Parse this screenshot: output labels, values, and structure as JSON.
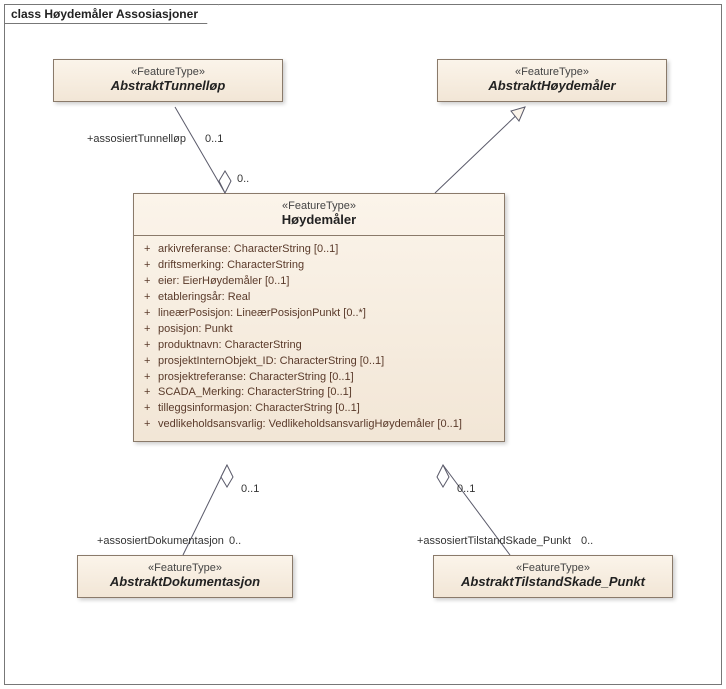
{
  "frame_title": "class Høydemåler Assosiasjoner",
  "boxes": {
    "tunnel": {
      "stereo": "«FeatureType»",
      "name": "AbstraktTunnelløp"
    },
    "abshm": {
      "stereo": "«FeatureType»",
      "name": "AbstraktHøydemåler"
    },
    "hm": {
      "stereo": "«FeatureType»",
      "name": "Høydemåler"
    },
    "dok": {
      "stereo": "«FeatureType»",
      "name": "AbstraktDokumentasjon"
    },
    "skade": {
      "stereo": "«FeatureType»",
      "name": "AbstraktTilstandSkade_Punkt"
    }
  },
  "attrs": [
    "arkivreferanse: CharacterString [0..1]",
    "driftsmerking: CharacterString",
    "eier: EierHøydemåler [0..1]",
    "etableringsår: Real",
    "lineærPosisjon: LineærPosisjonPunkt [0..*]",
    "posisjon: Punkt",
    "produktnavn: CharacterString",
    "prosjektInternObjekt_ID: CharacterString [0..1]",
    "prosjektreferanse: CharacterString [0..1]",
    "SCADA_Merking: CharacterString [0..1]",
    "tilleggsinformasjon: CharacterString [0..1]",
    "vedlikeholdsansvarlig: VedlikeholdsansvarligHøydemåler [0..1]"
  ],
  "labels": {
    "assocTunnel_role": "+assosiertTunnelløp",
    "assocTunnel_m1": "0..1",
    "assocTunnel_m2": "0..",
    "assocDok_role": "+assosiertDokumentasjon",
    "assocDok_m1": "0..1",
    "assocDok_m2": "0..",
    "assocSkade_role": "+assosiertTilstandSkade_Punkt",
    "assocSkade_m1": "0..1",
    "assocSkade_m2": "0.."
  },
  "colors": {
    "box_border": "#8a7a6a",
    "line": "#5a5a6a",
    "bg": "#ffffff"
  }
}
